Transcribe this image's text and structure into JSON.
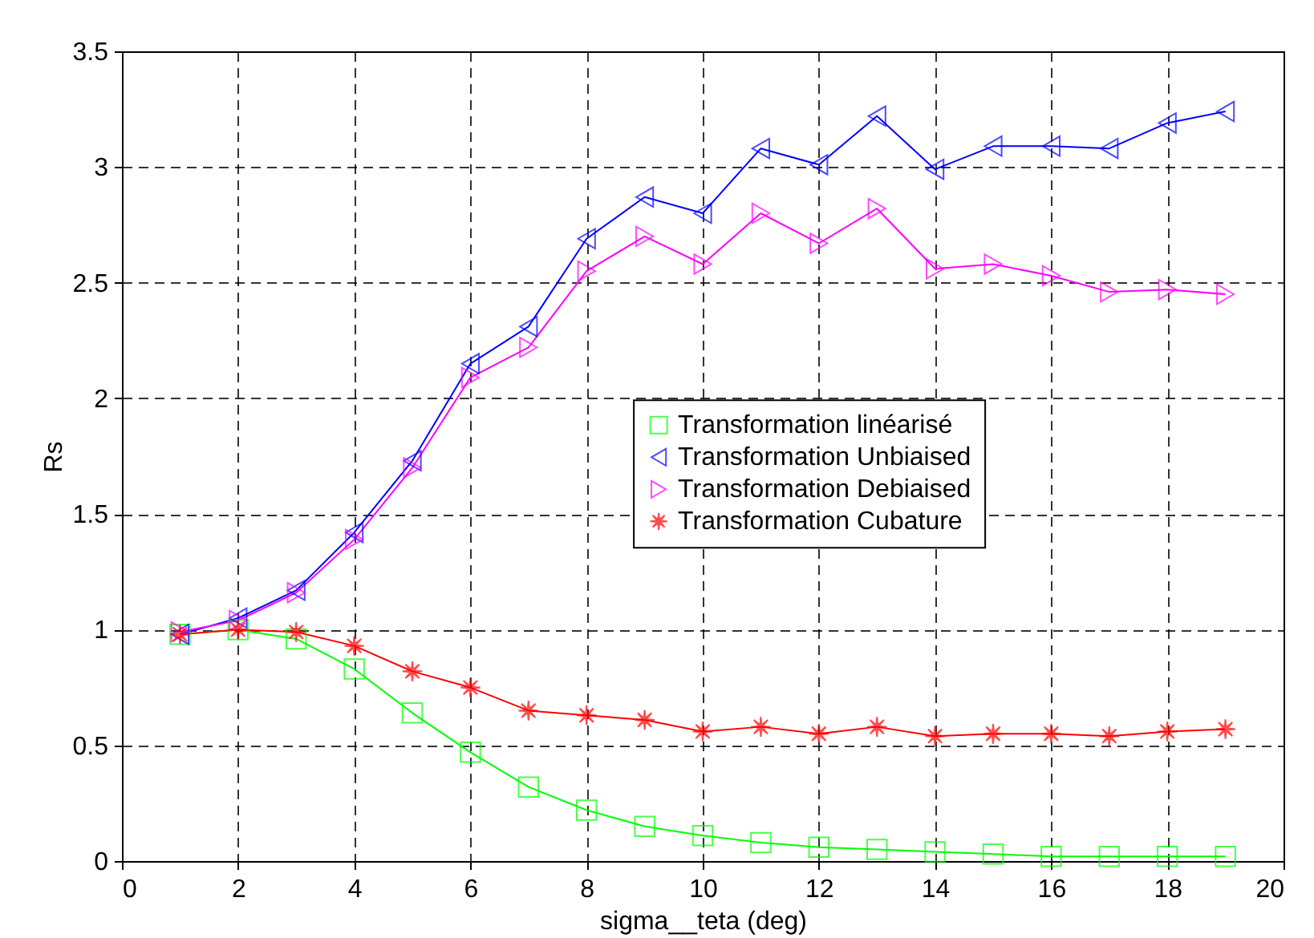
{
  "chart_data": {
    "type": "line",
    "xlabel": "sigma__teta (deg)",
    "ylabel": "Rs",
    "x": [
      1,
      2,
      3,
      4,
      5,
      6,
      7,
      8,
      9,
      10,
      11,
      12,
      13,
      14,
      15,
      16,
      17,
      18,
      19
    ],
    "xlim": [
      0,
      20
    ],
    "xticks": [
      0,
      2,
      4,
      6,
      8,
      10,
      12,
      14,
      16,
      18,
      20
    ],
    "ylim": [
      0,
      3.5
    ],
    "yticks": [
      {
        "value": 0,
        "label": "0"
      },
      0.5,
      {
        "value": 1,
        "label": "1"
      },
      1.5,
      {
        "value": 2,
        "label": "2"
      },
      2.5,
      {
        "value": 3,
        "label": "3"
      },
      3.5
    ],
    "grid": true,
    "legend": "right",
    "line_style": "solid",
    "series": [
      {
        "name": "Transformation linéarisé",
        "color": "#00ff00",
        "marker": "square",
        "values": [
          0.98,
          1.0,
          0.96,
          0.83,
          0.64,
          0.47,
          0.32,
          0.22,
          0.15,
          0.11,
          0.08,
          0.06,
          0.05,
          0.04,
          0.03,
          0.02,
          0.02,
          0.02,
          0.02
        ]
      },
      {
        "name": "Transformation Unbiaised",
        "color": "#0000ff",
        "marker": "triangle-left",
        "values": [
          0.98,
          1.05,
          1.17,
          1.42,
          1.73,
          2.15,
          2.31,
          2.69,
          2.87,
          2.8,
          3.08,
          3.01,
          3.22,
          2.99,
          3.09,
          3.09,
          3.08,
          3.19,
          3.24
        ]
      },
      {
        "name": "Transformation Debiaised",
        "color": "#ff00ff",
        "marker": "triangle-right",
        "values": [
          0.99,
          1.04,
          1.16,
          1.39,
          1.7,
          2.09,
          2.22,
          2.55,
          2.7,
          2.58,
          2.8,
          2.67,
          2.82,
          2.56,
          2.58,
          2.53,
          2.46,
          2.47,
          2.45
        ]
      },
      {
        "name": "Transformation Cubature",
        "color": "#ff0000",
        "marker": "star",
        "values": [
          0.98,
          1.0,
          0.99,
          0.93,
          0.82,
          0.75,
          0.65,
          0.63,
          0.61,
          0.56,
          0.58,
          0.55,
          0.58,
          0.54,
          0.55,
          0.55,
          0.54,
          0.56,
          0.57
        ]
      }
    ]
  }
}
